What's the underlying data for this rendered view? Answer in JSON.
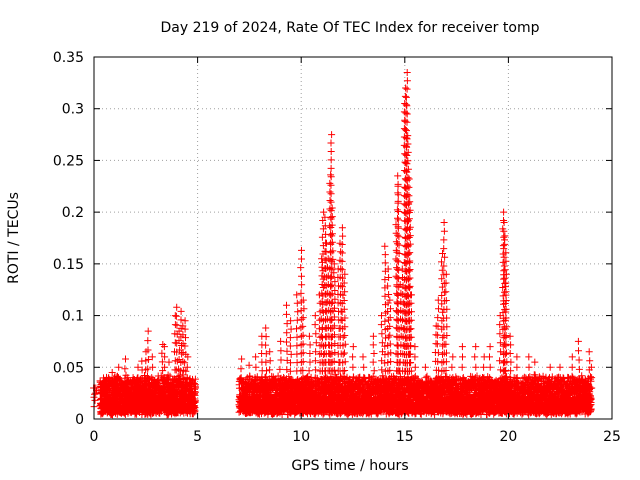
{
  "chart_data": {
    "type": "scatter",
    "title": "Day 219 of 2024, Rate Of TEC Index for receiver tomp",
    "xlabel": "GPS time / hours",
    "ylabel": "ROTI / TECUs",
    "xlim": [
      0,
      25
    ],
    "ylim": [
      0,
      0.35
    ],
    "x_ticks": [
      0,
      5,
      10,
      15,
      20,
      25
    ],
    "x_tick_labels": [
      "0",
      "5",
      "10",
      "15",
      "20",
      "25"
    ],
    "y_ticks": [
      0,
      0.05,
      0.1,
      0.15,
      0.2,
      0.25,
      0.3,
      0.35
    ],
    "y_tick_labels": [
      "0",
      "0.05",
      "0.1",
      "0.15",
      "0.2",
      "0.25",
      "0.3",
      "0.35"
    ],
    "grid": true,
    "marker": "+",
    "marker_color": "#ff0000",
    "data_gap_hours": [
      4.9,
      7.0
    ],
    "series": [
      {
        "name": "ROTI",
        "points": [
          [
            0.0,
            0.012
          ],
          [
            0.0,
            0.03
          ],
          [
            0.05,
            0.018
          ],
          [
            0.1,
            0.025
          ],
          [
            0.7,
            0.04
          ],
          [
            0.9,
            0.045
          ],
          [
            1.2,
            0.05
          ],
          [
            1.5,
            0.058
          ],
          [
            2.1,
            0.05
          ],
          [
            2.3,
            0.056
          ],
          [
            2.5,
            0.065
          ],
          [
            2.6,
            0.085
          ],
          [
            2.8,
            0.06
          ],
          [
            3.3,
            0.072
          ],
          [
            3.4,
            0.07
          ],
          [
            3.6,
            0.055
          ],
          [
            3.9,
            0.1
          ],
          [
            4.0,
            0.108
          ],
          [
            4.1,
            0.085
          ],
          [
            4.2,
            0.104
          ],
          [
            4.3,
            0.09
          ],
          [
            4.4,
            0.095
          ],
          [
            4.5,
            0.06
          ],
          [
            7.1,
            0.058
          ],
          [
            7.5,
            0.052
          ],
          [
            7.8,
            0.06
          ],
          [
            8.1,
            0.08
          ],
          [
            8.3,
            0.088
          ],
          [
            8.5,
            0.065
          ],
          [
            9.0,
            0.075
          ],
          [
            9.3,
            0.11
          ],
          [
            9.5,
            0.095
          ],
          [
            9.8,
            0.12
          ],
          [
            10.0,
            0.163
          ],
          [
            10.1,
            0.115
          ],
          [
            10.4,
            0.08
          ],
          [
            10.7,
            0.1
          ],
          [
            10.9,
            0.12
          ],
          [
            11.0,
            0.155
          ],
          [
            11.05,
            0.2
          ],
          [
            11.15,
            0.195
          ],
          [
            11.2,
            0.17
          ],
          [
            11.3,
            0.155
          ],
          [
            11.4,
            0.236
          ],
          [
            11.45,
            0.275
          ],
          [
            11.5,
            0.204
          ],
          [
            11.6,
            0.15
          ],
          [
            11.8,
            0.145
          ],
          [
            11.9,
            0.17
          ],
          [
            12.0,
            0.185
          ],
          [
            12.1,
            0.14
          ],
          [
            12.5,
            0.07
          ],
          [
            13.0,
            0.06
          ],
          [
            13.5,
            0.08
          ],
          [
            13.9,
            0.1
          ],
          [
            14.05,
            0.167
          ],
          [
            14.2,
            0.145
          ],
          [
            14.3,
            0.115
          ],
          [
            14.6,
            0.188
          ],
          [
            14.65,
            0.235
          ],
          [
            14.7,
            0.225
          ],
          [
            14.8,
            0.13
          ],
          [
            14.9,
            0.145
          ],
          [
            15.0,
            0.305
          ],
          [
            15.05,
            0.32
          ],
          [
            15.1,
            0.335
          ],
          [
            15.15,
            0.274
          ],
          [
            15.2,
            0.232
          ],
          [
            15.25,
            0.21
          ],
          [
            15.3,
            0.12
          ],
          [
            15.5,
            0.07
          ],
          [
            16.0,
            0.05
          ],
          [
            16.5,
            0.09
          ],
          [
            16.6,
            0.115
          ],
          [
            16.8,
            0.16
          ],
          [
            16.9,
            0.19
          ],
          [
            17.0,
            0.14
          ],
          [
            17.3,
            0.06
          ],
          [
            17.8,
            0.07
          ],
          [
            18.4,
            0.07
          ],
          [
            18.8,
            0.06
          ],
          [
            19.1,
            0.07
          ],
          [
            19.6,
            0.1
          ],
          [
            19.75,
            0.2
          ],
          [
            19.8,
            0.19
          ],
          [
            19.85,
            0.177
          ],
          [
            19.9,
            0.14
          ],
          [
            20.1,
            0.08
          ],
          [
            20.4,
            0.06
          ],
          [
            21.0,
            0.06
          ],
          [
            21.3,
            0.055
          ],
          [
            22.0,
            0.05
          ],
          [
            22.5,
            0.05
          ],
          [
            23.1,
            0.06
          ],
          [
            23.4,
            0.075
          ],
          [
            23.9,
            0.065
          ],
          [
            24.0,
            0.05
          ]
        ]
      }
    ],
    "noise_band": {
      "description": "dense baseline of ROTI values between about 0.005 and 0.04 TECU/s over 0.3-4.9 h and 7.0-24.0 h",
      "segments": [
        [
          0.3,
          4.9
        ],
        [
          7.0,
          24.0
        ]
      ],
      "y_min": 0.004,
      "y_typical_max": 0.035
    }
  }
}
